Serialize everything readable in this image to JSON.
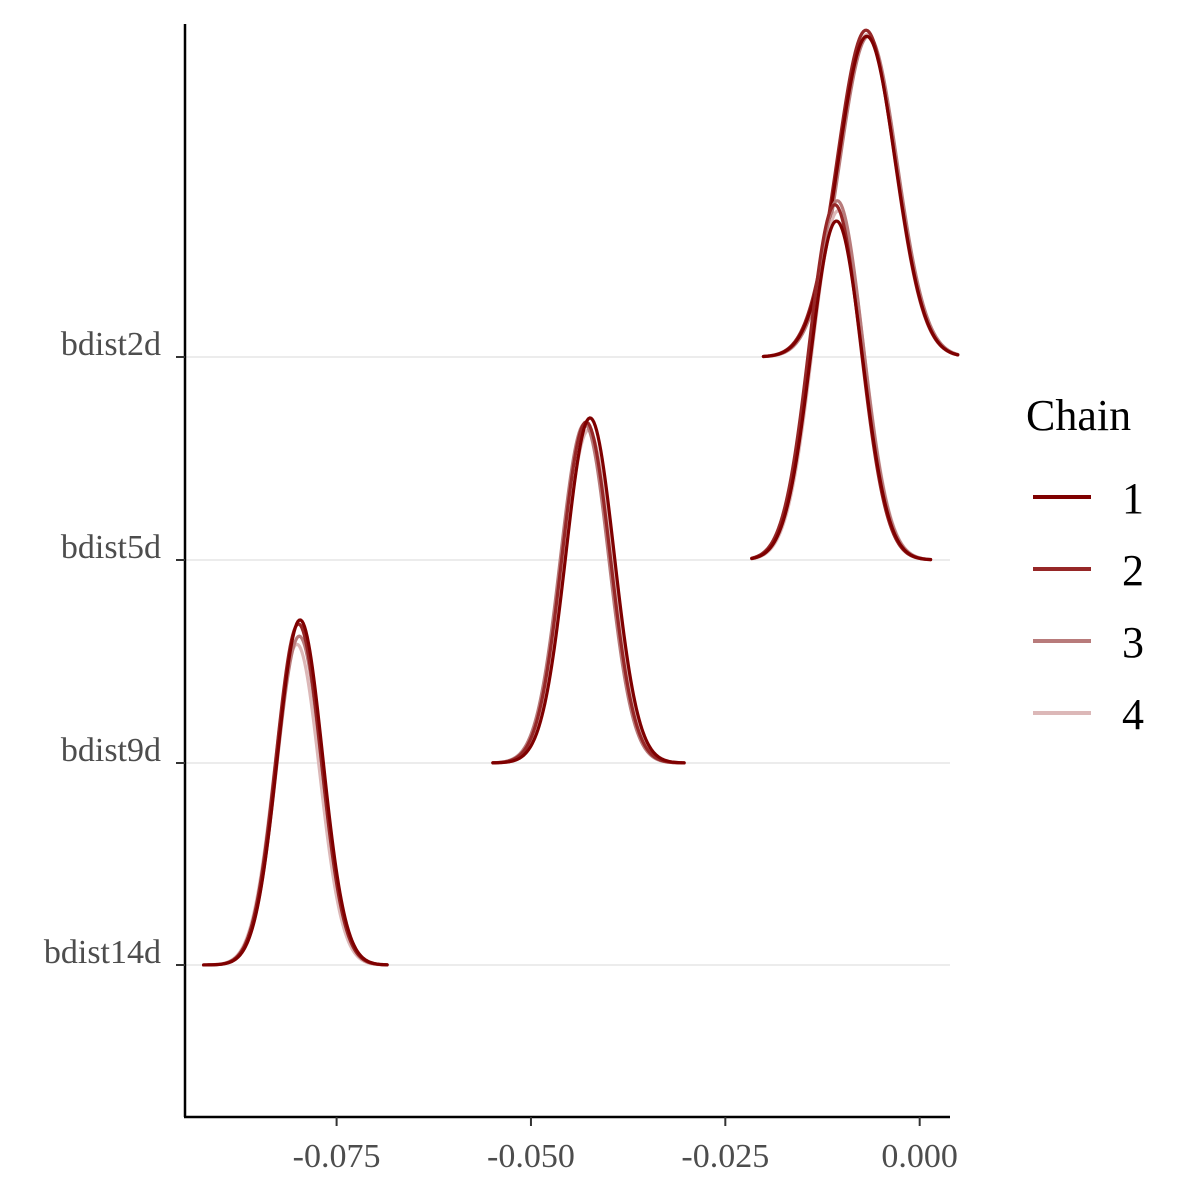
{
  "chart_data": {
    "type": "ridgeline-density",
    "title": "",
    "xlabel": "",
    "ylabel": "",
    "xlim": [
      -0.0945,
      0.0039
    ],
    "x_ticks": [
      -0.075,
      -0.05,
      -0.025,
      0.0
    ],
    "x_tick_labels": [
      "-0.075",
      "-0.050",
      "-0.025",
      "0.000"
    ],
    "parameters": [
      "bdist2d",
      "bdist5d",
      "bdist9d",
      "bdist14d"
    ],
    "ridge_height_scale": 1.6,
    "legend": {
      "title": "Chain",
      "position": "right",
      "entries": [
        "1",
        "2",
        "3",
        "4"
      ]
    },
    "series_colors": {
      "1": "#7f0000",
      "2": "#962727",
      "3": "#b87b7b",
      "4": "#dcb8b8"
    },
    "densities": [
      {
        "parameter": "bdist2d",
        "range": [
          -0.0201,
          0.0049
        ],
        "chains": [
          {
            "chain": "1",
            "mean": -0.0068,
            "sd": 0.0037,
            "peak": 1.58
          },
          {
            "chain": "2",
            "mean": -0.0069,
            "sd": 0.0037,
            "peak": 1.61
          },
          {
            "chain": "3",
            "mean": -0.0066,
            "sd": 0.0037,
            "peak": 1.58
          },
          {
            "chain": "4",
            "mean": -0.0067,
            "sd": 0.0037,
            "peak": 1.59
          }
        ]
      },
      {
        "parameter": "bdist5d",
        "range": [
          -0.0216,
          0.0014
        ],
        "chains": [
          {
            "chain": "1",
            "mean": -0.0107,
            "sd": 0.0033,
            "peak": 1.67
          },
          {
            "chain": "2",
            "mean": -0.0109,
            "sd": 0.0033,
            "peak": 1.75
          },
          {
            "chain": "3",
            "mean": -0.0106,
            "sd": 0.0033,
            "peak": 1.77
          },
          {
            "chain": "4",
            "mean": -0.0105,
            "sd": 0.0033,
            "peak": 1.72
          }
        ]
      },
      {
        "parameter": "bdist9d",
        "range": [
          -0.0549,
          -0.0303
        ],
        "chains": [
          {
            "chain": "1",
            "mean": -0.0424,
            "sd": 0.0031,
            "peak": 1.7
          },
          {
            "chain": "2",
            "mean": -0.0429,
            "sd": 0.0031,
            "peak": 1.68
          },
          {
            "chain": "3",
            "mean": -0.0431,
            "sd": 0.0031,
            "peak": 1.67
          },
          {
            "chain": "4",
            "mean": -0.0426,
            "sd": 0.0031,
            "peak": 1.64
          }
        ]
      },
      {
        "parameter": "bdist14d",
        "range": [
          -0.0921,
          -0.0685
        ],
        "chains": [
          {
            "chain": "1",
            "mean": -0.0797,
            "sd": 0.0029,
            "peak": 1.7
          },
          {
            "chain": "2",
            "mean": -0.0799,
            "sd": 0.0029,
            "peak": 1.68
          },
          {
            "chain": "3",
            "mean": -0.0798,
            "sd": 0.0029,
            "peak": 1.62
          },
          {
            "chain": "4",
            "mean": -0.0801,
            "sd": 0.0029,
            "peak": 1.58
          }
        ]
      }
    ]
  }
}
